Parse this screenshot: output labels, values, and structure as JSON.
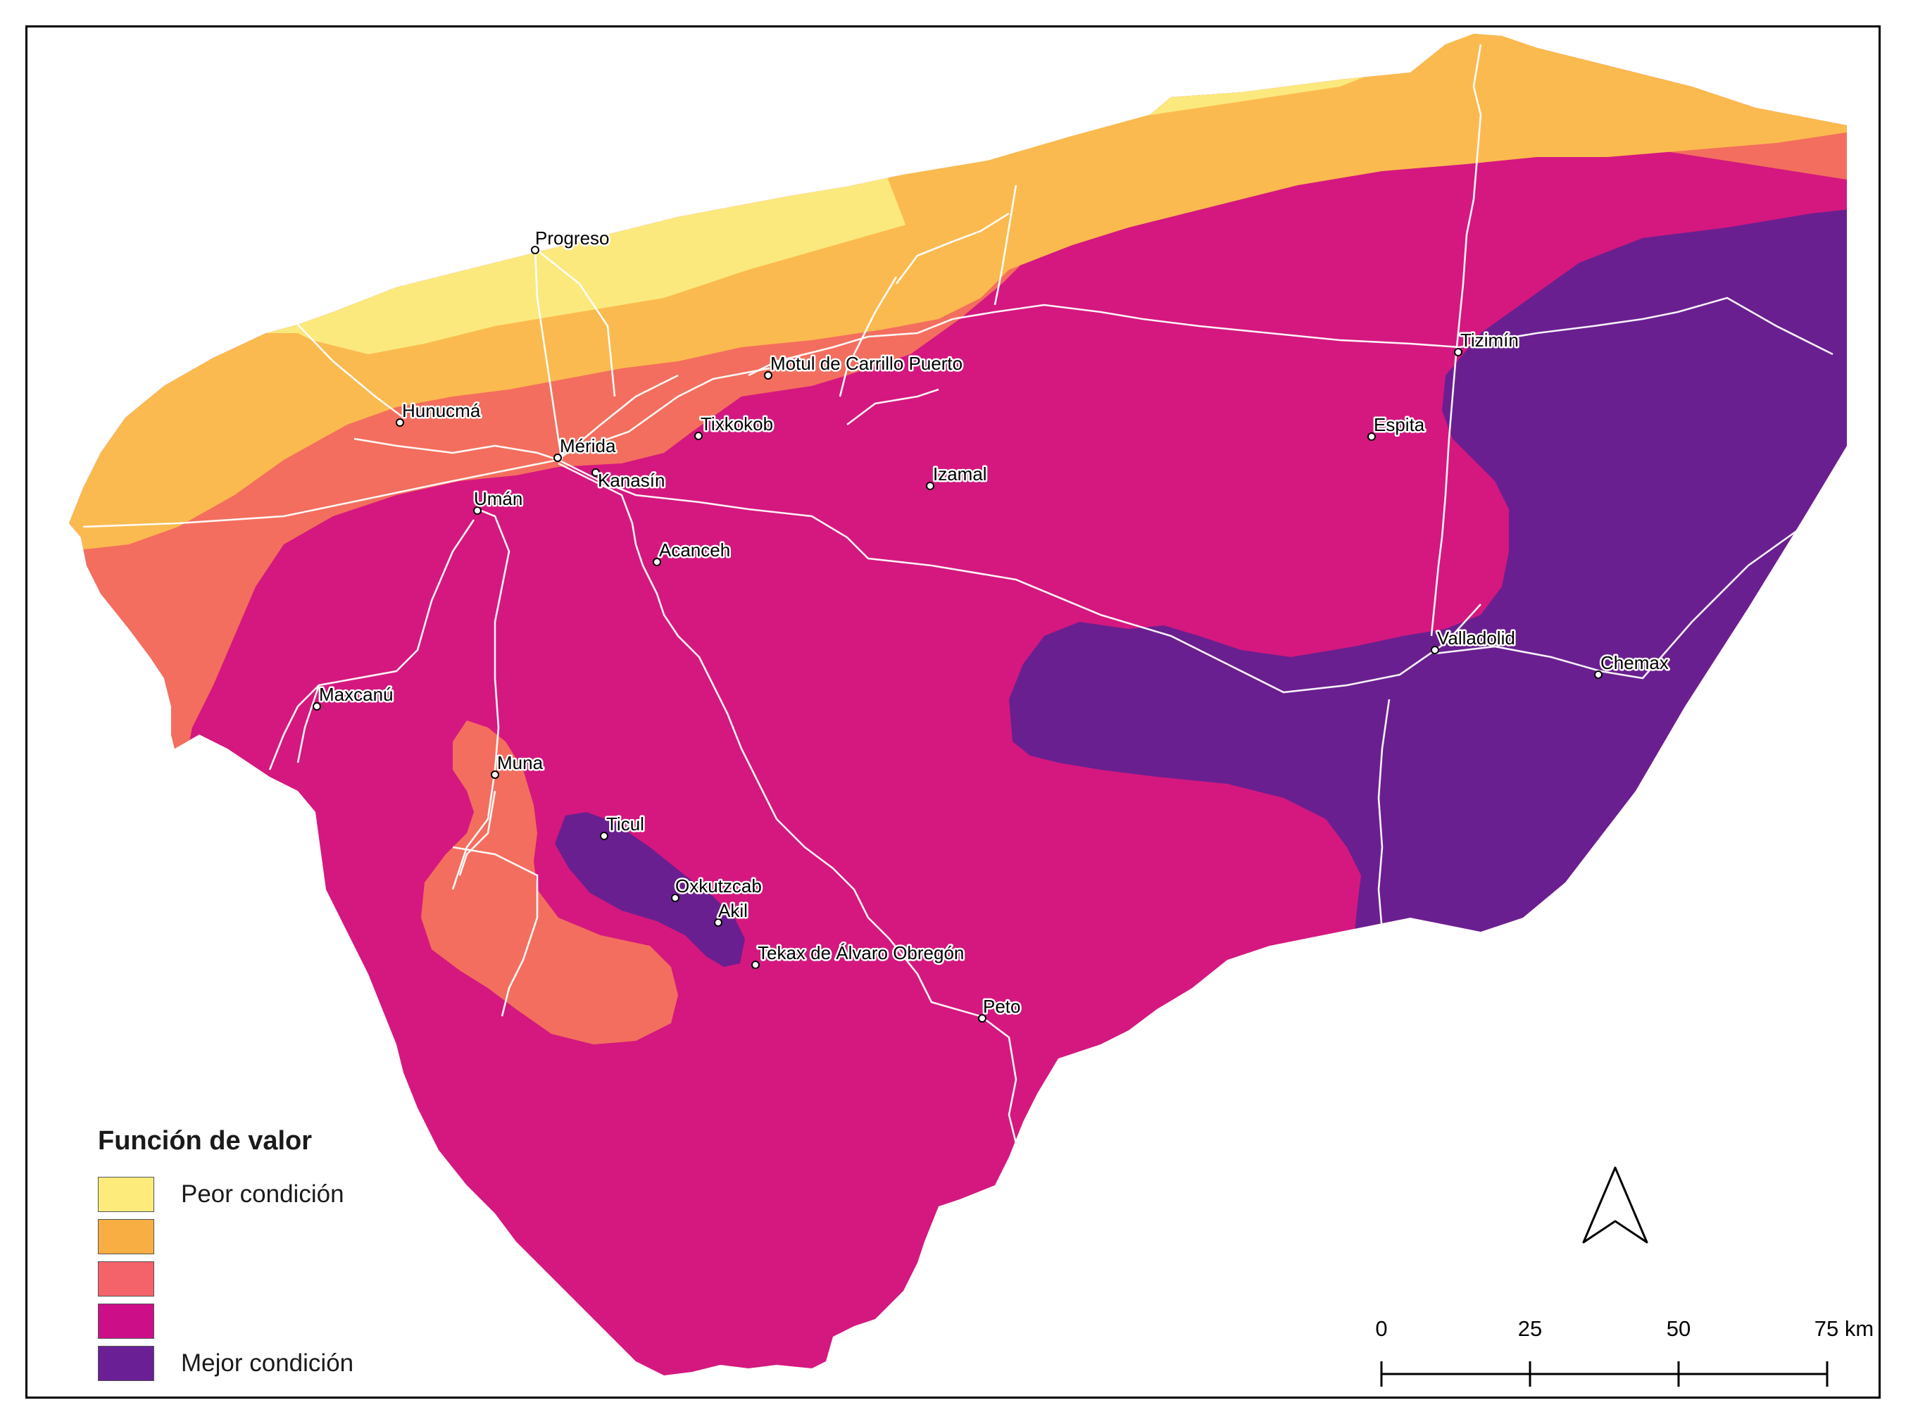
{
  "legend": {
    "title": "Función de valor",
    "items": [
      {
        "label": "Peor condición",
        "color": "#fdec7c"
      },
      {
        "label": "",
        "color": "#f9ae44"
      },
      {
        "label": "",
        "color": "#f4626a"
      },
      {
        "label": "",
        "color": "#cc0f88"
      },
      {
        "label": "Mejor condición",
        "color": "#6a1f94"
      }
    ]
  },
  "map_colors": {
    "class1": "#fbe97e",
    "class2": "#fbba4f",
    "class3": "#f36e5e",
    "class4": "#d4187f",
    "class5": "#6a1f90",
    "roads": "#ffffff"
  },
  "places": [
    {
      "name": "Progreso"
    },
    {
      "name": "Hunucmá"
    },
    {
      "name": "Mérida"
    },
    {
      "name": "Kanasín"
    },
    {
      "name": "Tixkokob"
    },
    {
      "name": "Motul de Carrillo Puerto"
    },
    {
      "name": "Umán"
    },
    {
      "name": "Izamal"
    },
    {
      "name": "Acanceh"
    },
    {
      "name": "Espita"
    },
    {
      "name": "Tizimín"
    },
    {
      "name": "Valladolid"
    },
    {
      "name": "Chemax"
    },
    {
      "name": "Maxcanú"
    },
    {
      "name": "Muna"
    },
    {
      "name": "Ticul"
    },
    {
      "name": "Oxkutzcab"
    },
    {
      "name": "Akil"
    },
    {
      "name": "Tekax de Álvaro Obregón"
    },
    {
      "name": "Peto"
    }
  ],
  "scale_bar": {
    "labels": [
      "0",
      "25",
      "50",
      "75 km"
    ]
  },
  "north_arrow": {
    "icon": "north-arrow-icon"
  }
}
